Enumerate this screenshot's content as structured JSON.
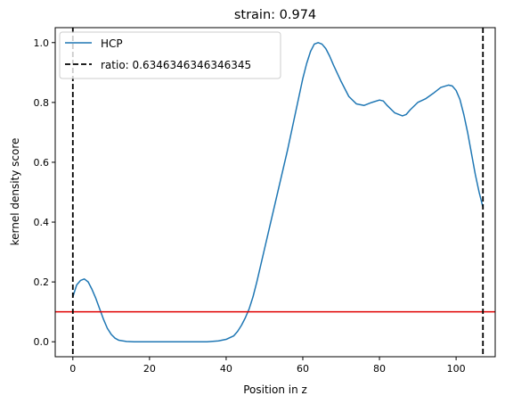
{
  "chart_data": {
    "type": "line",
    "title": "strain: 0.974",
    "xlabel": "Position in z",
    "ylabel": "kernel density score",
    "xlim": [
      -4.6,
      110.2
    ],
    "ylim": [
      -0.05,
      1.05
    ],
    "xticks": [
      0,
      20,
      40,
      60,
      80,
      100
    ],
    "yticks": [
      0.0,
      0.2,
      0.4,
      0.6,
      0.8,
      1.0
    ],
    "xtick_labels": [
      "0",
      "20",
      "40",
      "60",
      "80",
      "100"
    ],
    "ytick_labels": [
      "0.0",
      "0.2",
      "0.4",
      "0.6",
      "0.8",
      "1.0"
    ],
    "grid": false,
    "legend_position": "top-left",
    "series": [
      {
        "name": "HCP",
        "color": "#1f77b4",
        "style": "solid",
        "x": [
          0,
          1,
          2,
          3,
          4,
          5,
          6,
          7,
          8,
          9,
          10,
          11,
          12,
          14,
          16,
          20,
          25,
          30,
          35,
          38,
          40,
          42,
          43,
          44,
          45,
          46,
          47,
          48,
          50,
          52,
          54,
          56,
          58,
          59,
          60,
          61,
          62,
          63,
          64,
          65,
          66,
          67,
          68,
          70,
          72,
          74,
          76,
          78,
          80,
          81,
          82,
          84,
          86,
          87,
          88,
          90,
          92,
          94,
          96,
          98,
          99,
          100,
          101,
          102,
          103,
          104,
          105,
          106,
          107
        ],
        "y": [
          0.15,
          0.19,
          0.205,
          0.21,
          0.2,
          0.175,
          0.145,
          0.11,
          0.075,
          0.045,
          0.025,
          0.012,
          0.005,
          0.001,
          0.0,
          0.0,
          0.0,
          0.0,
          0.0,
          0.003,
          0.008,
          0.02,
          0.035,
          0.055,
          0.08,
          0.11,
          0.15,
          0.2,
          0.31,
          0.42,
          0.53,
          0.64,
          0.76,
          0.82,
          0.88,
          0.93,
          0.97,
          0.995,
          1.0,
          0.995,
          0.98,
          0.955,
          0.925,
          0.87,
          0.82,
          0.795,
          0.79,
          0.8,
          0.808,
          0.805,
          0.79,
          0.765,
          0.755,
          0.76,
          0.775,
          0.8,
          0.812,
          0.83,
          0.85,
          0.858,
          0.855,
          0.84,
          0.81,
          0.76,
          0.7,
          0.63,
          0.56,
          0.5,
          0.45
        ]
      }
    ],
    "vlines": [
      {
        "x": 0,
        "color": "#000000",
        "style": "dashed",
        "label": "ratio: 0.6346346346346345"
      },
      {
        "x": 107,
        "color": "#000000",
        "style": "dashed"
      }
    ],
    "hlines": [
      {
        "y": 0.1,
        "color": "#e00000",
        "style": "solid"
      }
    ],
    "legend": [
      {
        "label": "HCP",
        "style": "solid",
        "color": "#1f77b4"
      },
      {
        "label": "ratio: 0.6346346346346345",
        "style": "dashed",
        "color": "#000000"
      }
    ]
  }
}
